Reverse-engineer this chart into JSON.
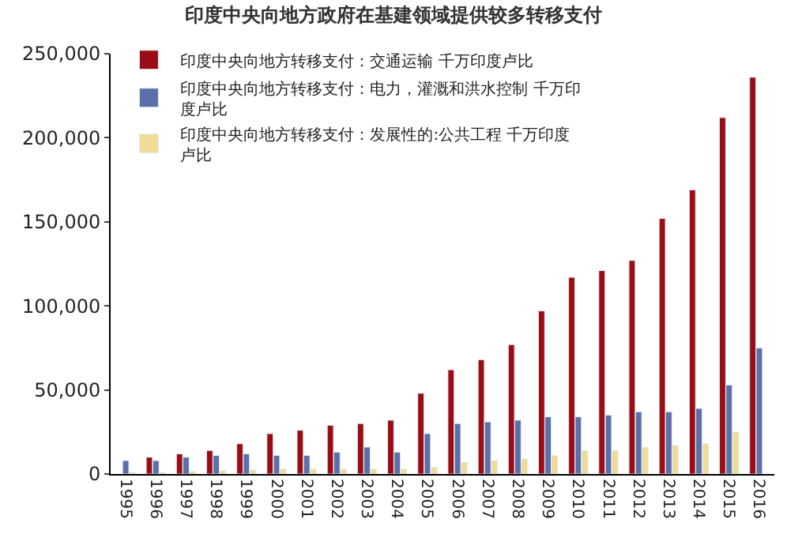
{
  "chart_data": {
    "type": "bar",
    "title": "印度中央向地方政府在基建领域提供较多转移支付",
    "categories": [
      "1995",
      "1996",
      "1997",
      "1998",
      "1999",
      "2000",
      "2001",
      "2002",
      "2003",
      "2004",
      "2005",
      "2006",
      "2007",
      "2008",
      "2009",
      "2010",
      "2011",
      "2012",
      "2013",
      "2014",
      "2015",
      "2016"
    ],
    "series": [
      {
        "name": "印度中央向地方转移支付：交通运输 千万印度卢比",
        "color": "#9b0d14",
        "values": [
          null,
          10000,
          12000,
          14000,
          18000,
          24000,
          26000,
          29000,
          30000,
          32000,
          48000,
          62000,
          68000,
          77000,
          97000,
          117000,
          121000,
          127000,
          152000,
          169000,
          212000,
          236000
        ]
      },
      {
        "name": "印度中央向地方转移支付：电力，灌溉和洪水控制 千万印度卢比",
        "color": "#5b6fa8",
        "values": [
          8000,
          8000,
          10000,
          11000,
          12000,
          11000,
          11000,
          13000,
          16000,
          13000,
          24000,
          30000,
          31000,
          32000,
          34000,
          34000,
          35000,
          37000,
          37000,
          39000,
          53000,
          75000
        ]
      },
      {
        "name": "印度中央向地方转移支付：发展性的:公共工程 千万印度卢比",
        "color": "#f0dc96",
        "values": [
          1000,
          1000,
          1500,
          2000,
          2500,
          3000,
          3000,
          3000,
          3000,
          3000,
          4000,
          7000,
          8000,
          9000,
          11000,
          14000,
          14000,
          16000,
          17000,
          18000,
          25000,
          null
        ]
      }
    ],
    "ylim": [
      0,
      250000
    ],
    "yticks": [
      {
        "value": 0,
        "label": "0"
      },
      {
        "value": 50000,
        "label": "50,000"
      },
      {
        "value": 100000,
        "label": "100,000"
      },
      {
        "value": 150000,
        "label": "150,000"
      },
      {
        "value": 200000,
        "label": "200,000"
      },
      {
        "value": 250000,
        "label": "250,000"
      }
    ],
    "legend": "top left"
  }
}
